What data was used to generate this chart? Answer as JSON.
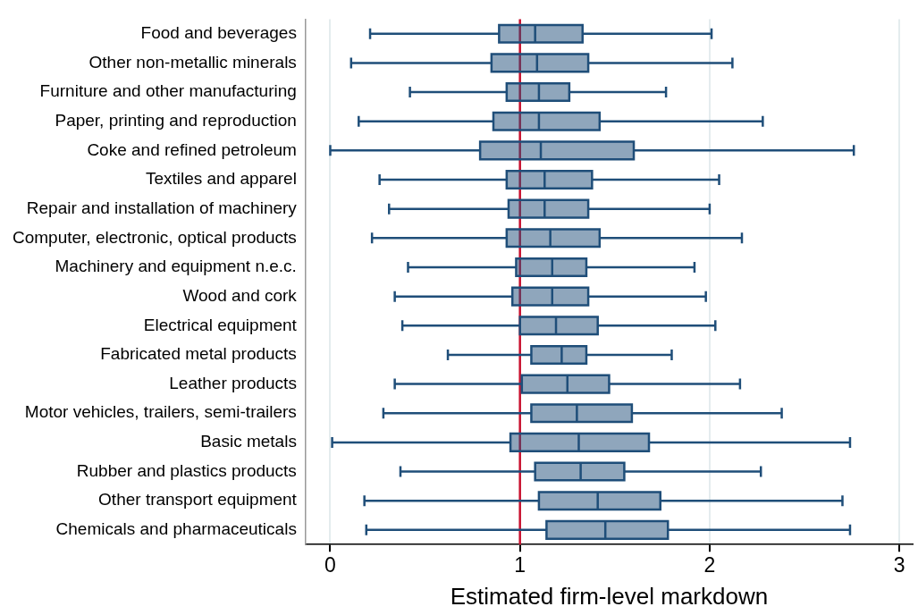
{
  "chart_data": {
    "type": "box",
    "xlabel": "Estimated firm-level markdown",
    "orientation": "horizontal",
    "categories": [
      "Food and beverages",
      "Other non-metallic minerals",
      "Furniture and other manufacturing",
      "Paper, printing and reproduction",
      "Coke and refined petroleum",
      "Textiles and apparel",
      "Repair and installation of machinery",
      "Computer, electronic, optical products",
      "Machinery and equipment n.e.c.",
      "Wood and cork",
      "Electrical equipment",
      "Fabricated metal products",
      "Leather products",
      "Motor vehicles, trailers, semi-trailers",
      "Basic metals",
      "Rubber and plastics products",
      "Other transport equipment",
      "Chemicals and pharmaceuticals"
    ],
    "color": "#1f4e79",
    "boxes": [
      {
        "low": 0.21,
        "q1": 0.89,
        "median": 1.08,
        "q3": 1.33,
        "high": 2.01
      },
      {
        "low": 0.11,
        "q1": 0.85,
        "median": 1.09,
        "q3": 1.36,
        "high": 2.12
      },
      {
        "low": 0.42,
        "q1": 0.93,
        "median": 1.1,
        "q3": 1.26,
        "high": 1.77
      },
      {
        "low": 0.15,
        "q1": 0.86,
        "median": 1.1,
        "q3": 1.42,
        "high": 2.28
      },
      {
        "low": 0.0,
        "q1": 0.79,
        "median": 1.11,
        "q3": 1.6,
        "high": 2.76
      },
      {
        "low": 0.26,
        "q1": 0.93,
        "median": 1.13,
        "q3": 1.38,
        "high": 2.05
      },
      {
        "low": 0.31,
        "q1": 0.94,
        "median": 1.13,
        "q3": 1.36,
        "high": 2.0
      },
      {
        "low": 0.22,
        "q1": 0.93,
        "median": 1.16,
        "q3": 1.42,
        "high": 2.17
      },
      {
        "low": 0.41,
        "q1": 0.98,
        "median": 1.17,
        "q3": 1.35,
        "high": 1.92
      },
      {
        "low": 0.34,
        "q1": 0.96,
        "median": 1.17,
        "q3": 1.36,
        "high": 1.98
      },
      {
        "low": 0.38,
        "q1": 1.0,
        "median": 1.19,
        "q3": 1.41,
        "high": 2.03
      },
      {
        "low": 0.62,
        "q1": 1.06,
        "median": 1.22,
        "q3": 1.35,
        "high": 1.8
      },
      {
        "low": 0.34,
        "q1": 1.01,
        "median": 1.25,
        "q3": 1.47,
        "high": 2.16
      },
      {
        "low": 0.28,
        "q1": 1.06,
        "median": 1.3,
        "q3": 1.59,
        "high": 2.38
      },
      {
        "low": 0.01,
        "q1": 0.95,
        "median": 1.31,
        "q3": 1.68,
        "high": 2.74
      },
      {
        "low": 0.37,
        "q1": 1.08,
        "median": 1.32,
        "q3": 1.55,
        "high": 2.27
      },
      {
        "low": 0.18,
        "q1": 1.1,
        "median": 1.41,
        "q3": 1.74,
        "high": 2.7
      },
      {
        "low": 0.19,
        "q1": 1.14,
        "median": 1.45,
        "q3": 1.78,
        "high": 2.74
      }
    ],
    "xlim": [
      -0.13,
      3.07
    ],
    "xticks": [
      0,
      1,
      2,
      3
    ],
    "grid": "x",
    "legend": false,
    "ref_lines": [
      {
        "axis": "x",
        "value": 1,
        "color": "#c8102e"
      }
    ]
  }
}
